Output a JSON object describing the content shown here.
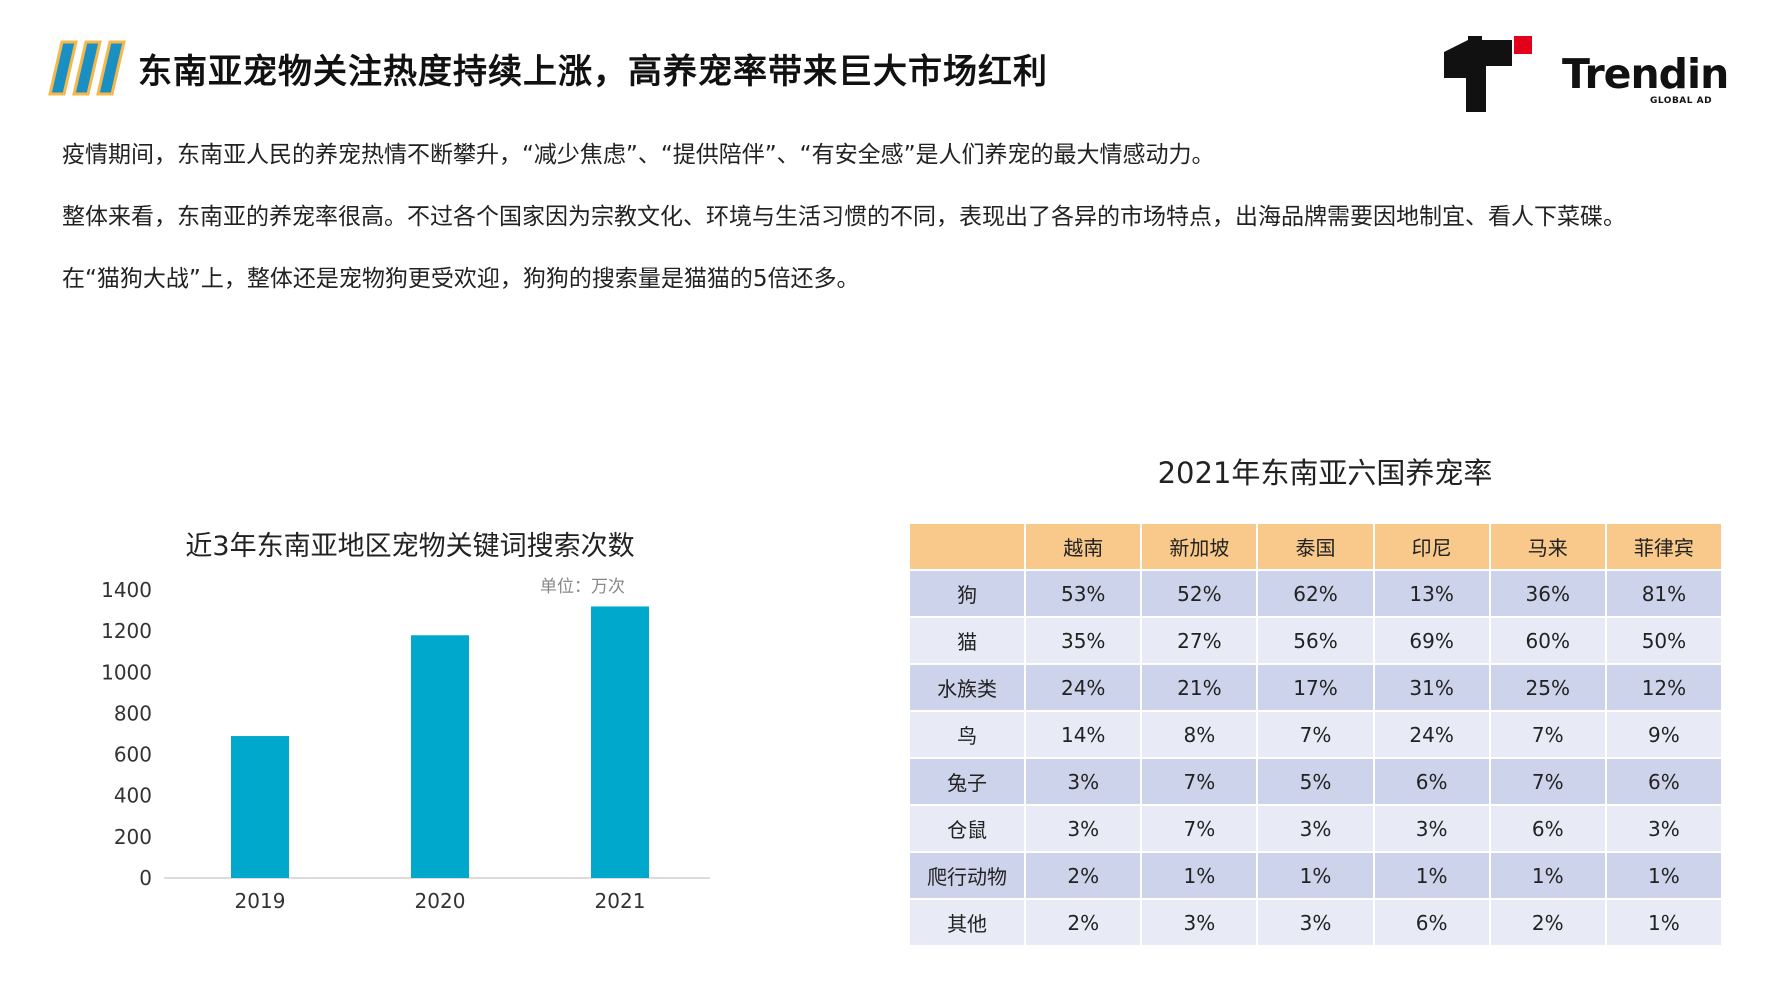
{
  "header": {
    "title": "东南亚宠物关注热度持续上涨，高养宠率带来巨大市场红利",
    "logo_text": "Trendin",
    "logo_sub": "GLOBAL AD",
    "icon": "triple-slash-icon"
  },
  "intro": {
    "p1": "疫情期间，东南亚人民的养宠热情不断攀升，“减少焦虑”、“提供陪伴”、“有安全感”是人们养宠的最大情感动力。",
    "p2": "整体来看，东南亚的养宠率很高。不过各个国家因为宗教文化、环境与生活习惯的不同，表现出了各异的市场特点，出海品牌需要因地制宜、看人下菜碟。",
    "p3": "在“猫狗大战”上，整体还是宠物狗更受欢迎，狗狗的搜索量是猫猫的5倍还多。"
  },
  "chart_data": [
    {
      "type": "bar",
      "title": "近3年东南亚地区宠物关键词搜索次数",
      "unit_label": "单位：万次",
      "categories": [
        "2019",
        "2020",
        "2021"
      ],
      "values": [
        690,
        1180,
        1320
      ],
      "ylim": [
        0,
        1400
      ],
      "yticks": [
        0,
        200,
        400,
        600,
        800,
        1000,
        1200,
        1400
      ],
      "grid": false,
      "color": "#00a8cc"
    },
    {
      "type": "table",
      "title": "2021年东南亚六国养宠率",
      "columns": [
        "",
        "越南",
        "新加坡",
        "泰国",
        "印尼",
        "马来",
        "菲律宾"
      ],
      "rows": [
        [
          "狗",
          "53%",
          "52%",
          "62%",
          "13%",
          "36%",
          "81%"
        ],
        [
          "猫",
          "35%",
          "27%",
          "56%",
          "69%",
          "60%",
          "50%"
        ],
        [
          "水族类",
          "24%",
          "21%",
          "17%",
          "31%",
          "25%",
          "12%"
        ],
        [
          "鸟",
          "14%",
          "8%",
          "7%",
          "24%",
          "7%",
          "9%"
        ],
        [
          "兔子",
          "3%",
          "7%",
          "5%",
          "6%",
          "7%",
          "6%"
        ],
        [
          "仓鼠",
          "3%",
          "7%",
          "3%",
          "3%",
          "6%",
          "3%"
        ],
        [
          "爬行动物",
          "2%",
          "1%",
          "1%",
          "1%",
          "1%",
          "1%"
        ],
        [
          "其他",
          "2%",
          "3%",
          "3%",
          "6%",
          "2%",
          "1%"
        ]
      ],
      "header_color": "#f8c98a",
      "row_colors": [
        "#cdd3ea",
        "#e8ebf5"
      ]
    }
  ]
}
